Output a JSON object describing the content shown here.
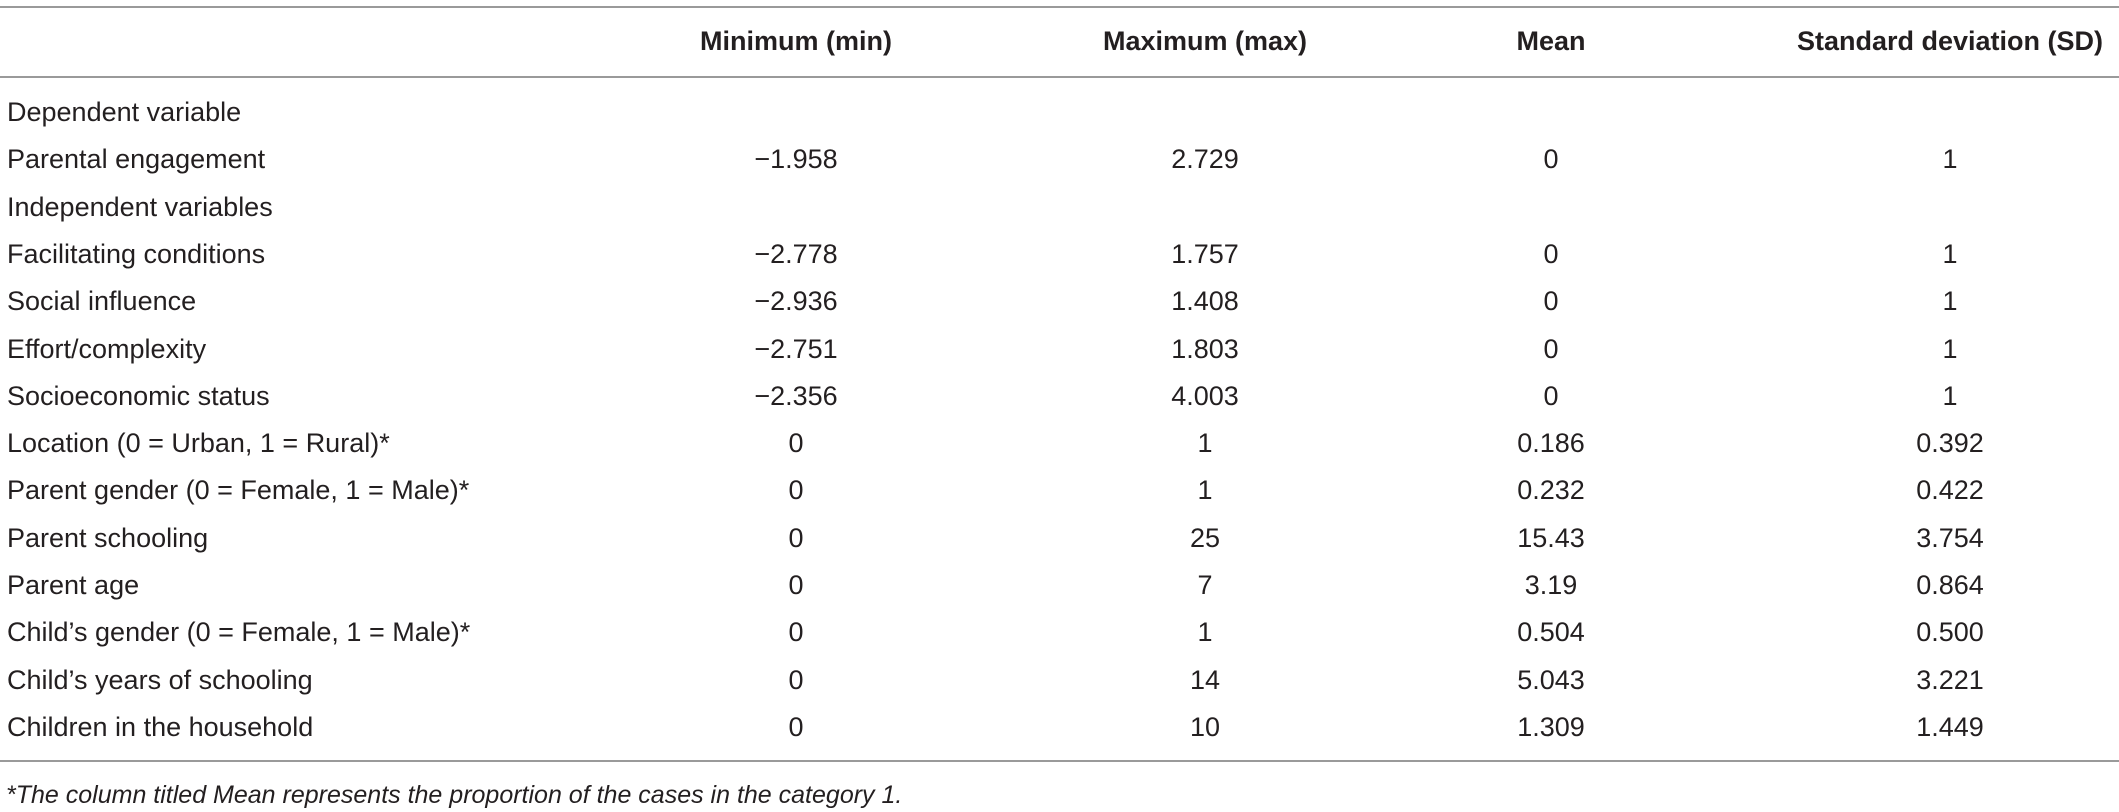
{
  "table": {
    "header": [
      "Minimum (min)",
      "Maximum (max)",
      "Mean",
      "Standard deviation (SD)"
    ],
    "rows": [
      [
        "Dependent variable"
      ],
      [
        "Parental engagement",
        "−1.958",
        "2.729",
        "0",
        "1"
      ],
      [
        "Independent variables"
      ],
      [
        "Facilitating conditions",
        "−2.778",
        "1.757",
        "0",
        "1"
      ],
      [
        "Social influence",
        "−2.936",
        "1.408",
        "0",
        "1"
      ],
      [
        "Effort/complexity",
        "−2.751",
        "1.803",
        "0",
        "1"
      ],
      [
        "Socioeconomic status",
        "−2.356",
        "4.003",
        "0",
        "1"
      ],
      [
        "Location (0 = Urban, 1 = Rural)*",
        "0",
        "1",
        "0.186",
        "0.392"
      ],
      [
        "Parent gender (0 = Female, 1 = Male)*",
        "0",
        "1",
        "0.232",
        "0.422"
      ],
      [
        "Parent schooling",
        "0",
        "25",
        "15.43",
        "3.754"
      ],
      [
        "Parent age",
        "0",
        "7",
        "3.19",
        "0.864"
      ],
      [
        "Child’s gender (0 = Female, 1 = Male)*",
        "0",
        "1",
        "0.504",
        "0.500"
      ],
      [
        "Child’s years of schooling",
        "0",
        "14",
        "5.043",
        "3.221"
      ],
      [
        "Children in the household",
        "0",
        "10",
        "1.309",
        "1.449"
      ]
    ],
    "footnote": "*The column titled Mean represents the proportion of the cases in the category 1."
  }
}
